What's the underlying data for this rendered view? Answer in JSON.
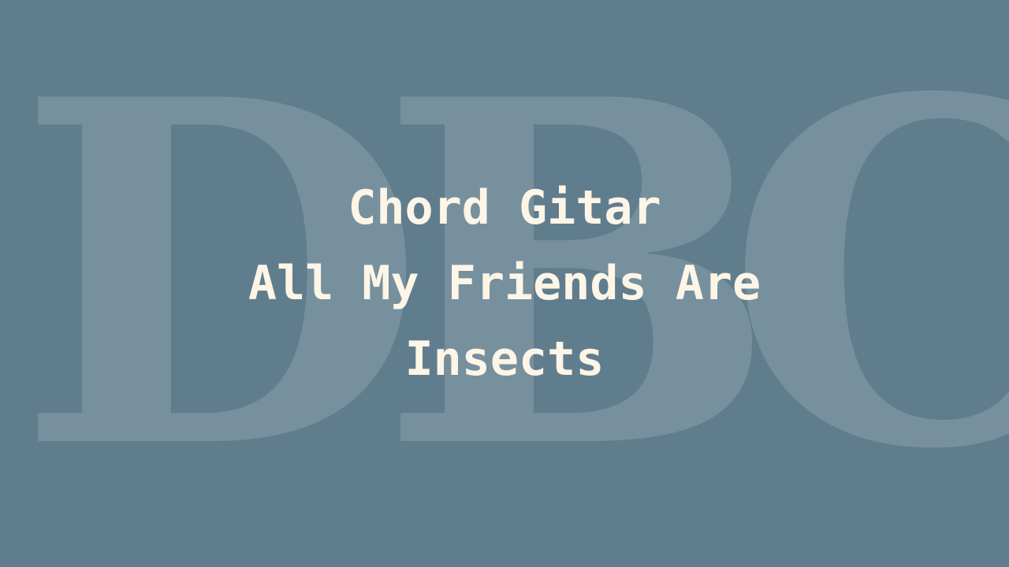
{
  "watermark": {
    "letters": [
      "D",
      "B",
      "C"
    ]
  },
  "title": {
    "line1": "Chord Gitar",
    "line2": "All My Friends Are",
    "line3": "Insects"
  },
  "colors": {
    "background": "#607d8e",
    "title_text": "#fdf5e6"
  }
}
